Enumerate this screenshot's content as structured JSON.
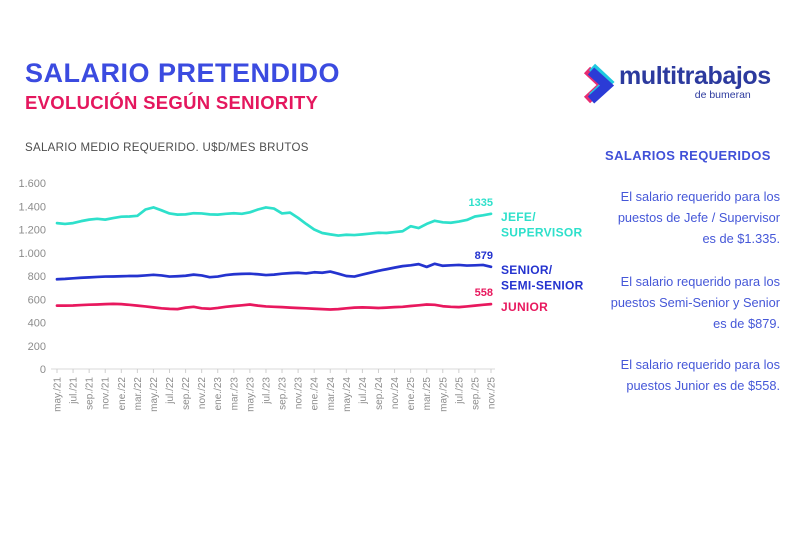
{
  "header": {
    "title": "SALARIO PRETENDIDO",
    "subtitle": "EVOLUCIÓN SEGÚN SENIORITY",
    "caption": "SALARIO MEDIO REQUERIDO. U$D/MES BRUTOS"
  },
  "logo": {
    "wordmark": "multitrabajos",
    "tagline": "de bumeran",
    "colors": {
      "text": "#2c3a9e",
      "chevron_blue": "#2b3bd6",
      "chevron_cyan": "#1fc9e0",
      "chevron_pink": "#e82d72"
    }
  },
  "side_panel": {
    "heading": "SALARIOS REQUERIDOS",
    "paragraphs": [
      "El salario requerido para los puestos de Jefe / Supervisor es de $1.335.",
      "El salario requerido para los puestos Semi-Senior y Senior es de $879.",
      "El salario requerido para los puestos Junior es de $558."
    ]
  },
  "chart_data": {
    "type": "line",
    "title": "SALARIO MEDIO REQUERIDO. U$D/MES BRUTOS",
    "grid": false,
    "legend_position": "right",
    "ylim": [
      0,
      1600
    ],
    "y_ticks": [
      0,
      200,
      400,
      600,
      800,
      1000,
      1200,
      1400,
      1600
    ],
    "y_tick_labels": [
      "0",
      "200",
      "400",
      "600",
      "800",
      "1.000",
      "1.200",
      "1.400",
      "1.600"
    ],
    "x_points": 55,
    "x_label_every": 2,
    "x_tick_labels": [
      "may./21",
      "jul./21",
      "sep./21",
      "nov./21",
      "ene./22",
      "mar./22",
      "may./22",
      "jul./22",
      "sep./22",
      "nov./22",
      "ene./23",
      "mar./23",
      "may./23",
      "jul./23",
      "sep./23",
      "nov./23",
      "ene./24",
      "mar./24",
      "may./24",
      "jul./24",
      "sep./24",
      "nov./24",
      "ene./25",
      "mar./25",
      "may./25",
      "jul./25",
      "sep./25",
      "nov./25"
    ],
    "series": [
      {
        "name": "JEFE/\nSUPERVISOR",
        "color": "#2ee0cb",
        "end_label": "1335",
        "values": [
          1255,
          1248,
          1255,
          1272,
          1285,
          1292,
          1285,
          1298,
          1310,
          1312,
          1318,
          1372,
          1390,
          1365,
          1338,
          1328,
          1330,
          1340,
          1338,
          1330,
          1328,
          1335,
          1340,
          1335,
          1348,
          1372,
          1390,
          1380,
          1338,
          1345,
          1300,
          1248,
          1200,
          1170,
          1158,
          1148,
          1155,
          1152,
          1158,
          1165,
          1172,
          1170,
          1178,
          1185,
          1228,
          1212,
          1248,
          1275,
          1262,
          1258,
          1268,
          1282,
          1312,
          1322,
          1335
        ]
      },
      {
        "name": "SENIOR/\nSEMI-SENIOR",
        "color": "#2433cf",
        "end_label": "879",
        "values": [
          772,
          775,
          780,
          785,
          788,
          792,
          795,
          796,
          798,
          800,
          800,
          805,
          810,
          805,
          795,
          798,
          802,
          812,
          805,
          790,
          795,
          808,
          815,
          818,
          820,
          815,
          808,
          812,
          820,
          825,
          828,
          822,
          832,
          828,
          838,
          820,
          800,
          795,
          812,
          828,
          845,
          858,
          872,
          885,
          892,
          902,
          878,
          905,
          888,
          892,
          895,
          890,
          892,
          895,
          879
        ]
      },
      {
        "name": "JUNIOR",
        "color": "#e8185e",
        "end_label": "558",
        "values": [
          545,
          545,
          546,
          550,
          553,
          555,
          558,
          560,
          558,
          552,
          545,
          538,
          530,
          522,
          517,
          515,
          528,
          535,
          522,
          518,
          525,
          535,
          542,
          548,
          555,
          545,
          538,
          535,
          532,
          528,
          525,
          522,
          518,
          515,
          512,
          515,
          522,
          528,
          530,
          528,
          525,
          528,
          532,
          535,
          542,
          548,
          555,
          552,
          540,
          535,
          532,
          538,
          545,
          552,
          558
        ]
      }
    ]
  }
}
